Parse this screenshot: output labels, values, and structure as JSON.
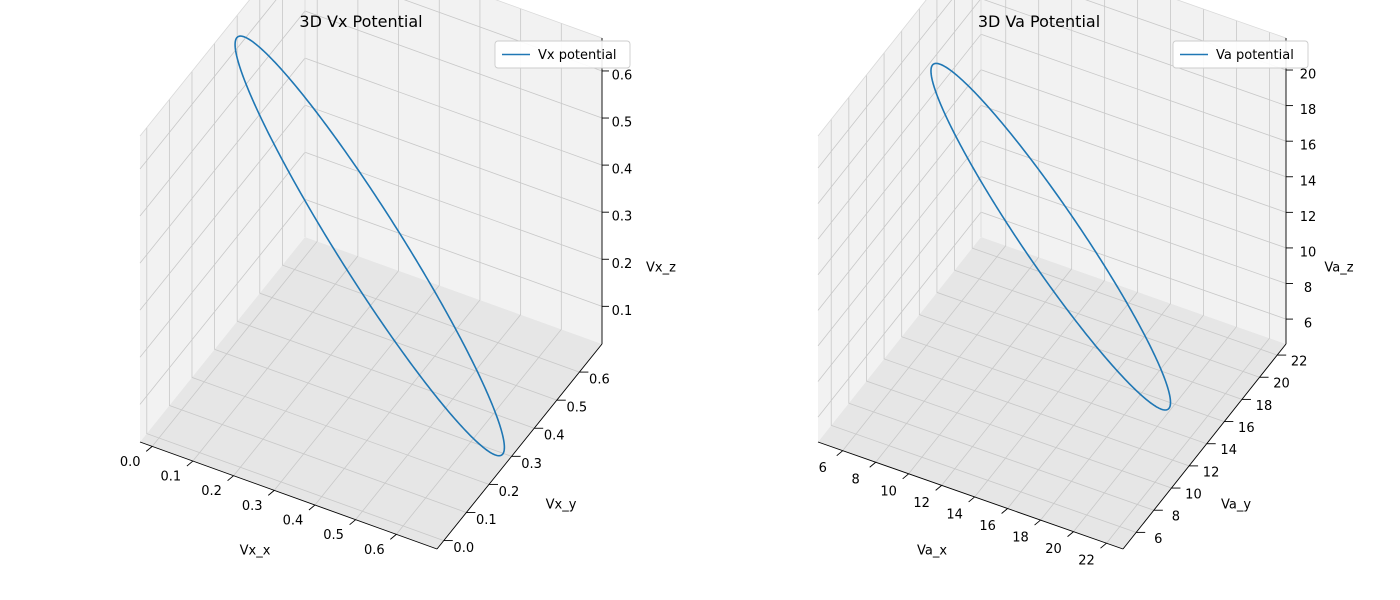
{
  "chart_data": [
    {
      "type": "line",
      "projection": "3d",
      "title": "3D Vx Potential",
      "xlabel": "Vx_x",
      "ylabel": "Vx_y",
      "zlabel": "Vx_z",
      "xticks": [
        "0.0",
        "0.1",
        "0.2",
        "0.3",
        "0.4",
        "0.5",
        "0.6"
      ],
      "yticks": [
        "0.0",
        "0.1",
        "0.2",
        "0.3",
        "0.4",
        "0.5",
        "0.6"
      ],
      "zticks": [
        "0.1",
        "0.2",
        "0.3",
        "0.4",
        "0.5",
        "0.6"
      ],
      "xlim": [
        -0.03,
        0.7
      ],
      "ylim": [
        -0.03,
        0.7
      ],
      "zlim": [
        0.02,
        0.67
      ],
      "grid": true,
      "legend": "top-right",
      "series": [
        {
          "name": "Vx potential",
          "color": "#1f77b4",
          "center": [
            0.333,
            0.333,
            0.333
          ],
          "axis_u": [
            0.335,
            -0.335,
            0.0
          ],
          "axis_v": [
            0.19,
            0.19,
            -0.38
          ],
          "points": 400
        }
      ]
    },
    {
      "type": "line",
      "projection": "3d",
      "title": "3D Va Potential",
      "xlabel": "Va_x",
      "ylabel": "Va_y",
      "zlabel": "Va_z",
      "xticks": [
        "6",
        "8",
        "10",
        "12",
        "14",
        "16",
        "18",
        "20",
        "22"
      ],
      "yticks": [
        "6",
        "8",
        "10",
        "12",
        "14",
        "16",
        "18",
        "20",
        "22"
      ],
      "zticks": [
        "6",
        "8",
        "10",
        "12",
        "14",
        "16",
        "18",
        "20"
      ],
      "xlim": [
        4.5,
        23.0
      ],
      "ylim": [
        4.5,
        23.0
      ],
      "zlim": [
        4.6,
        21.8
      ],
      "grid": true,
      "legend": "top-right",
      "series": [
        {
          "name": "Va potential",
          "color": "#1f77b4",
          "center": [
            13.7,
            13.7,
            13.4
          ],
          "axis_u": [
            7.2,
            -7.2,
            0.0
          ],
          "axis_v": [
            4.2,
            4.2,
            -8.2
          ],
          "points": 400
        }
      ]
    }
  ]
}
